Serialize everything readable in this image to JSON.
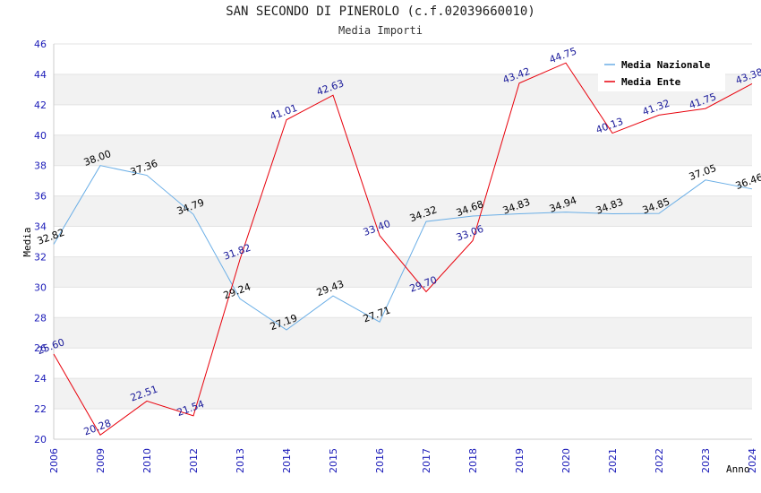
{
  "chart_data": {
    "type": "line",
    "title": "SAN SECONDO DI PINEROLO (c.f.02039660010)",
    "subtitle": "Media Importi",
    "xlabel": "Anno",
    "ylabel": "Media",
    "categories": [
      "2006",
      "2009",
      "2010",
      "2012",
      "2013",
      "2014",
      "2015",
      "2016",
      "2017",
      "2018",
      "2019",
      "2020",
      "2021",
      "2022",
      "2023",
      "2024"
    ],
    "ylim": [
      20,
      46
    ],
    "yticks": [
      20,
      22,
      24,
      26,
      28,
      30,
      32,
      34,
      36,
      38,
      40,
      42,
      44,
      46
    ],
    "grid": "horizontal alternating bands",
    "legend_position": "top-right",
    "series": [
      {
        "name": "Media Nazionale",
        "color": "#6aaee6",
        "label_color": "#000000",
        "values": [
          32.82,
          38.0,
          37.36,
          34.79,
          29.24,
          27.19,
          29.43,
          27.71,
          34.32,
          34.68,
          34.83,
          34.94,
          34.83,
          34.85,
          37.05,
          36.46
        ],
        "labels": [
          "32.82",
          "38.00",
          "37.36",
          "34.79",
          "29.24",
          "27.19",
          "29.43",
          "27.71",
          "34.32",
          "34.68",
          "34.83",
          "34.94",
          "34.83",
          "34.85",
          "37.05",
          "36.46"
        ]
      },
      {
        "name": "Media Ente",
        "color": "#e8000b",
        "label_color": "#1a1a9a",
        "values": [
          25.6,
          20.28,
          22.51,
          21.54,
          31.82,
          41.01,
          42.63,
          33.4,
          29.7,
          33.06,
          43.42,
          44.75,
          40.13,
          41.32,
          41.75,
          43.38
        ],
        "labels": [
          "25.60",
          "20.28",
          "22.51",
          "21.54",
          "31.82",
          "41.01",
          "42.63",
          "33.40",
          "29.70",
          "33.06",
          "43.42",
          "44.75",
          "40.13",
          "41.32",
          "41.75",
          "43.38"
        ]
      }
    ]
  }
}
